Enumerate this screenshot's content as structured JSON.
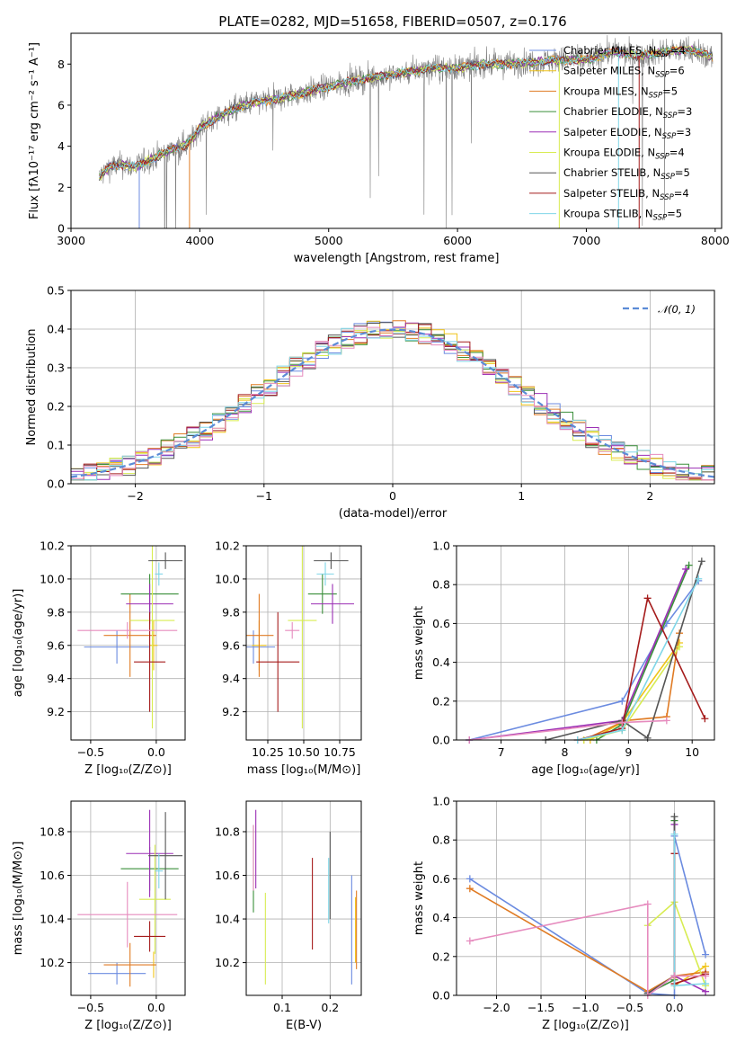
{
  "title": "PLATE=0282, MJD=51658, FIBERID=0507, z=0.176",
  "chart_data": [
    {
      "type": "line",
      "xlabel": "wavelength [Angstrom, rest frame]",
      "ylabel": "Flux [fλ10⁻¹⁷ erg cm⁻² s⁻¹ A⁻¹]",
      "xlim": [
        3000,
        8050
      ],
      "ylim": [
        0,
        9.5
      ],
      "xticks": [
        "3000",
        "4000",
        "5000",
        "6000",
        "7000",
        "8000"
      ],
      "yticks": [
        "0",
        "2",
        "4",
        "6",
        "8"
      ],
      "legend_location": "right",
      "data_color": "#7f7f7f",
      "continuum": {
        "x": [
          3220,
          3300,
          3400,
          3500,
          3600,
          3700,
          3800,
          3900,
          3960,
          4000,
          4100,
          4200,
          4300,
          4400,
          4600,
          4800,
          5000,
          5200,
          5400,
          5600,
          5800,
          6000,
          6200,
          6400,
          6600,
          6800,
          7000,
          7200,
          7400,
          7600,
          7800,
          8000
        ],
        "y": [
          2.5,
          3.0,
          3.1,
          3.0,
          3.3,
          3.6,
          3.9,
          4.1,
          4.5,
          4.9,
          5.3,
          5.6,
          5.9,
          6.1,
          6.3,
          6.6,
          6.9,
          7.2,
          7.4,
          7.6,
          7.8,
          7.8,
          8.0,
          8.0,
          8.1,
          8.2,
          8.2,
          8.6,
          8.4,
          8.6,
          8.7,
          8.3
        ]
      },
      "series": [
        {
          "name": "Chabrier MILES, N_SSP=4",
          "color": "#6b8be0"
        },
        {
          "name": "Salpeter MILES, N_SSP=6",
          "color": "#f0c419"
        },
        {
          "name": "Kroupa MILES, N_SSP=5",
          "color": "#e07b24"
        },
        {
          "name": "Chabrier ELODIE, N_SSP=3",
          "color": "#3a8f3a"
        },
        {
          "name": "Salpeter ELODIE, N_SSP=3",
          "color": "#9b2fb5"
        },
        {
          "name": "Kroupa ELODIE, N_SSP=4",
          "color": "#d8ec52"
        },
        {
          "name": "Chabrier STELIB, N_SSP=5",
          "color": "#555555"
        },
        {
          "name": "Salpeter STELIB, N_SSP=4",
          "color": "#a51c1c"
        },
        {
          "name": "Kroupa STELIB, N_SSP=5",
          "color": "#7fd6e8"
        }
      ]
    },
    {
      "type": "histogram",
      "xlabel": "(data-model)/error",
      "ylabel": "Normed distribution",
      "xlim": [
        -2.5,
        2.5
      ],
      "ylim": [
        0,
        0.5
      ],
      "xticks": [
        "−2",
        "−1",
        "0",
        "1",
        "2"
      ],
      "yticks": [
        "0.0",
        "0.1",
        "0.2",
        "0.3",
        "0.4",
        "0.5"
      ],
      "grid": true,
      "legend": "𝒩(0, 1)",
      "legend_location": "top-right",
      "reference_curve": {
        "name": "N(0,1)",
        "color": "#5b8bd6",
        "mean": 0,
        "sigma": 1
      }
    },
    {
      "type": "errorbar",
      "xlabel": "Z [log₁₀(Z/Z⊙)]",
      "ylabel": "age  [log₁₀(age/yr)]",
      "xlim": [
        -0.65,
        0.22
      ],
      "ylim": [
        9.03,
        10.2
      ],
      "xticks": [
        "−0.5",
        "0.0"
      ],
      "yticks": [
        "9.2",
        "9.4",
        "9.6",
        "9.8",
        "10.0",
        "10.2"
      ],
      "points": [
        {
          "x": -0.3,
          "xerr": 0.25,
          "y": 9.59,
          "yerr": 0.1,
          "color": "#6b8be0"
        },
        {
          "x": -0.02,
          "xerr": 0.03,
          "y": 9.6,
          "yerr": 0.15,
          "color": "#f0c419"
        },
        {
          "x": -0.2,
          "xerr": 0.2,
          "y": 9.66,
          "yerr": 0.25,
          "color": "#e07b24"
        },
        {
          "x": -0.05,
          "xerr": 0.22,
          "y": 9.91,
          "yerr": 0.12,
          "color": "#3a8f3a"
        },
        {
          "x": -0.05,
          "xerr": 0.18,
          "y": 9.85,
          "yerr": 0.12,
          "color": "#9b2fb5"
        },
        {
          "x": -0.03,
          "xerr": 0.17,
          "y": 9.75,
          "yerr": 0.65,
          "color": "#d8ec52"
        },
        {
          "x": 0.07,
          "xerr": 0.13,
          "y": 10.11,
          "yerr": 0.05,
          "color": "#555555"
        },
        {
          "x": -0.05,
          "xerr": 0.12,
          "y": 9.5,
          "yerr": 0.3,
          "color": "#a51c1c"
        },
        {
          "x": 0.02,
          "xerr": 0.03,
          "y": 10.03,
          "yerr": 0.07,
          "color": "#7fd6e8"
        },
        {
          "x": -0.22,
          "xerr": 0.38,
          "y": 9.69,
          "yerr": 0.05,
          "color": "#e68bbe"
        }
      ]
    },
    {
      "type": "errorbar",
      "xlabel": "mass [log₁₀(M/M⊙)]",
      "xlim": [
        10.1,
        10.9
      ],
      "ylim": [
        9.03,
        10.2
      ],
      "xticks": [
        "10.25",
        "10.50",
        "10.75"
      ],
      "yticks": [
        "9.2",
        "9.4",
        "9.6",
        "9.8",
        "10.0",
        "10.2"
      ],
      "points": [
        {
          "x": 10.15,
          "xerr": 0.15,
          "y": 9.59,
          "yerr": 0.1,
          "color": "#6b8be0"
        },
        {
          "x": 10.19,
          "xerr": 0.05,
          "y": 9.6,
          "yerr": 0.15,
          "color": "#f0c419"
        },
        {
          "x": 10.19,
          "xerr": 0.1,
          "y": 9.66,
          "yerr": 0.25,
          "color": "#e07b24"
        },
        {
          "x": 10.63,
          "xerr": 0.1,
          "y": 9.91,
          "yerr": 0.12,
          "color": "#3a8f3a"
        },
        {
          "x": 10.7,
          "xerr": 0.15,
          "y": 9.85,
          "yerr": 0.12,
          "color": "#9b2fb5"
        },
        {
          "x": 10.49,
          "xerr": 0.1,
          "y": 9.75,
          "yerr": 0.65,
          "color": "#d8ec52"
        },
        {
          "x": 10.69,
          "xerr": 0.12,
          "y": 10.11,
          "yerr": 0.05,
          "color": "#555555"
        },
        {
          "x": 10.32,
          "xerr": 0.15,
          "y": 9.5,
          "yerr": 0.3,
          "color": "#a51c1c"
        },
        {
          "x": 10.65,
          "xerr": 0.06,
          "y": 10.03,
          "yerr": 0.07,
          "color": "#7fd6e8"
        },
        {
          "x": 10.42,
          "xerr": 0.05,
          "y": 9.69,
          "yerr": 0.05,
          "color": "#e68bbe"
        }
      ]
    },
    {
      "type": "line",
      "xlabel": "age  [log₁₀(age/yr)]",
      "ylabel": "mass weight",
      "xlim": [
        6.3,
        10.35
      ],
      "ylim": [
        0,
        1.0
      ],
      "xticks": [
        "7",
        "8",
        "9",
        "10"
      ],
      "yticks": [
        "0.0",
        "0.2",
        "0.4",
        "0.6",
        "0.8",
        "1.0"
      ],
      "grid": true,
      "series": [
        {
          "color": "#6b8be0",
          "x": [
            6.5,
            8.9,
            9.6,
            10.1
          ],
          "y": [
            0.0,
            0.2,
            0.6,
            0.82
          ]
        },
        {
          "color": "#f0c419",
          "x": [
            8.4,
            8.9,
            9.8
          ],
          "y": [
            0.0,
            0.09,
            0.5
          ]
        },
        {
          "color": "#e07b24",
          "x": [
            8.3,
            8.95,
            9.6,
            9.8
          ],
          "y": [
            0.0,
            0.1,
            0.12,
            0.55
          ]
        },
        {
          "color": "#3a8f3a",
          "x": [
            8.5,
            8.9,
            9.95
          ],
          "y": [
            0.0,
            0.08,
            0.9
          ]
        },
        {
          "color": "#9b2fb5",
          "x": [
            6.5,
            8.9,
            9.9
          ],
          "y": [
            0.0,
            0.1,
            0.88
          ]
        },
        {
          "color": "#d8ec52",
          "x": [
            8.3,
            8.9,
            9.8
          ],
          "y": [
            0.0,
            0.05,
            0.48
          ]
        },
        {
          "color": "#555555",
          "x": [
            7.7,
            8.9,
            9.3,
            10.15
          ],
          "y": [
            0.0,
            0.1,
            0.01,
            0.92
          ]
        },
        {
          "color": "#a51c1c",
          "x": [
            8.2,
            8.9,
            9.3,
            10.2
          ],
          "y": [
            0.0,
            0.06,
            0.73,
            0.11
          ]
        },
        {
          "color": "#7fd6e8",
          "x": [
            8.2,
            8.9,
            10.1
          ],
          "y": [
            0.0,
            0.05,
            0.83
          ]
        },
        {
          "color": "#e68bbe",
          "x": [
            6.5,
            8.9,
            9.6
          ],
          "y": [
            0.0,
            0.09,
            0.1
          ]
        }
      ]
    },
    {
      "type": "errorbar",
      "xlabel": "Z [log₁₀(Z/Z⊙)]",
      "ylabel": "mass [log₁₀(M/M⊙)]",
      "xlim": [
        -0.65,
        0.22
      ],
      "ylim": [
        10.05,
        10.94
      ],
      "xticks": [
        "−0.5",
        "0.0"
      ],
      "yticks": [
        "10.2",
        "10.4",
        "10.6",
        "10.8"
      ],
      "points": [
        {
          "x": -0.3,
          "xerr": 0.22,
          "y": 10.15,
          "yerr": 0.05,
          "color": "#6b8be0"
        },
        {
          "x": -0.02,
          "xerr": 0.02,
          "y": 10.19,
          "yerr": 0.06,
          "color": "#f0c419"
        },
        {
          "x": -0.2,
          "xerr": 0.2,
          "y": 10.19,
          "yerr": 0.1,
          "color": "#e07b24"
        },
        {
          "x": -0.05,
          "xerr": 0.22,
          "y": 10.63,
          "yerr": 0.1,
          "color": "#3a8f3a"
        },
        {
          "x": -0.05,
          "xerr": 0.18,
          "y": 10.7,
          "yerr": 0.2,
          "color": "#9b2fb5"
        },
        {
          "x": -0.01,
          "xerr": 0.12,
          "y": 10.49,
          "yerr": 0.25,
          "color": "#d8ec52"
        },
        {
          "x": 0.07,
          "xerr": 0.13,
          "y": 10.69,
          "yerr": 0.2,
          "color": "#555555"
        },
        {
          "x": -0.05,
          "xerr": 0.12,
          "y": 10.32,
          "yerr": 0.07,
          "color": "#a51c1c"
        },
        {
          "x": 0.02,
          "xerr": 0.03,
          "y": 10.62,
          "yerr": 0.08,
          "color": "#7fd6e8"
        },
        {
          "x": -0.22,
          "xerr": 0.38,
          "y": 10.42,
          "yerr": 0.15,
          "color": "#e68bbe"
        }
      ]
    },
    {
      "type": "errorbar",
      "xlabel": "E(B-V)",
      "xlim": [
        0.025,
        0.265
      ],
      "ylim": [
        10.05,
        10.94
      ],
      "xticks": [
        "0.1",
        "0.2"
      ],
      "yticks": [
        "10.2",
        "10.4",
        "10.6",
        "10.8"
      ],
      "points": [
        {
          "x": 0.245,
          "xerr": 0,
          "y": 10.35,
          "yerr": 0.25,
          "color": "#6b8be0"
        },
        {
          "x": 0.253,
          "xerr": 0,
          "y": 10.35,
          "yerr": 0.15,
          "color": "#f0c419"
        },
        {
          "x": 0.255,
          "xerr": 0,
          "y": 10.35,
          "yerr": 0.18,
          "color": "#e07b24"
        },
        {
          "x": 0.04,
          "xerr": 0,
          "y": 10.63,
          "yerr": 0.2,
          "color": "#3a8f3a"
        },
        {
          "x": 0.045,
          "xerr": 0,
          "y": 10.72,
          "yerr": 0.18,
          "color": "#9b2fb5"
        },
        {
          "x": 0.065,
          "xerr": 0,
          "y": 10.31,
          "yerr": 0.21,
          "color": "#d8ec52"
        },
        {
          "x": 0.2,
          "xerr": 0,
          "y": 10.6,
          "yerr": 0.2,
          "color": "#555555"
        },
        {
          "x": 0.163,
          "xerr": 0,
          "y": 10.47,
          "yerr": 0.21,
          "color": "#a51c1c"
        },
        {
          "x": 0.197,
          "xerr": 0,
          "y": 10.53,
          "yerr": 0.15,
          "color": "#7fd6e8"
        },
        {
          "x": 0.04,
          "xerr": 0,
          "y": 10.68,
          "yerr": 0.15,
          "color": "#e68bbe"
        }
      ]
    },
    {
      "type": "line",
      "xlabel": "Z [log₁₀(Z/Z⊙)]",
      "ylabel": "mass weight",
      "xlim": [
        -2.45,
        0.45
      ],
      "ylim": [
        0,
        1.0
      ],
      "xticks": [
        "−2.0",
        "−1.5",
        "−1.0",
        "−0.5",
        "0.0"
      ],
      "yticks": [
        "0.0",
        "0.2",
        "0.4",
        "0.6",
        "0.8",
        "1.0"
      ],
      "grid": true,
      "series": [
        {
          "color": "#6b8be0",
          "x": [
            -2.3,
            -0.3,
            0.0,
            0.0,
            0.35
          ],
          "y": [
            0.6,
            0.01,
            0.0,
            0.82,
            0.21
          ]
        },
        {
          "color": "#f0c419",
          "x": [
            0.0,
            0.0,
            0.35
          ],
          "y": [
            0.09,
            0.05,
            0.15
          ]
        },
        {
          "color": "#e07b24",
          "x": [
            -2.3,
            -0.3,
            0.0,
            0.35
          ],
          "y": [
            0.55,
            0.02,
            0.1,
            0.12
          ]
        },
        {
          "color": "#3a8f3a",
          "x": [
            -0.3,
            0.0,
            0.0
          ],
          "y": [
            0.01,
            0.08,
            0.9
          ]
        },
        {
          "color": "#9b2fb5",
          "x": [
            0.0,
            0.0,
            0.35
          ],
          "y": [
            0.88,
            0.1,
            0.02
          ]
        },
        {
          "color": "#d8ec52",
          "x": [
            -0.3,
            0.0,
            0.35
          ],
          "y": [
            0.36,
            0.48,
            0.05
          ]
        },
        {
          "color": "#555555",
          "x": [
            -0.3,
            0.0,
            0.0
          ],
          "y": [
            0.01,
            0.1,
            0.92
          ]
        },
        {
          "color": "#a51c1c",
          "x": [
            0.0,
            0.0,
            0.35
          ],
          "y": [
            0.73,
            0.06,
            0.11
          ]
        },
        {
          "color": "#7fd6e8",
          "x": [
            0.0,
            0.0,
            0.35
          ],
          "y": [
            0.83,
            0.05,
            0.06
          ]
        },
        {
          "color": "#e68bbe",
          "x": [
            -2.3,
            -0.3,
            -0.3,
            0.0,
            0.35
          ],
          "y": [
            0.28,
            0.47,
            0.0,
            0.1,
            0.1
          ]
        }
      ]
    }
  ]
}
